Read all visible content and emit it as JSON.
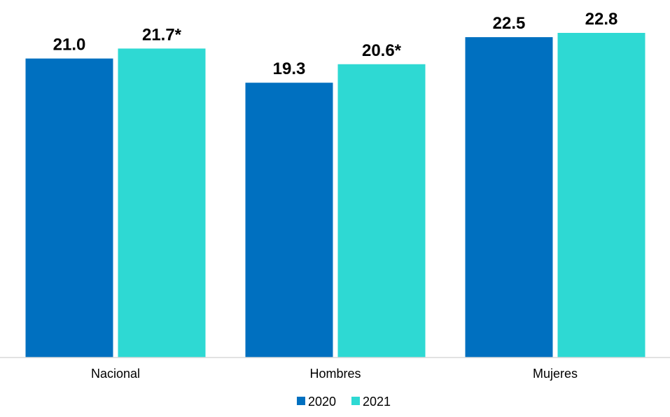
{
  "chart_data": {
    "type": "bar",
    "categories": [
      "Nacional",
      "Hombres",
      "Mujeres"
    ],
    "series": [
      {
        "name": "2020",
        "color": "#0070C0",
        "values": [
          21.0,
          19.3,
          22.5
        ],
        "labels": [
          "21.0",
          "19.3",
          "22.5"
        ]
      },
      {
        "name": "2021",
        "color": "#2ED9D3",
        "values": [
          21.7,
          20.6,
          22.8
        ],
        "labels": [
          "21.7*",
          "20.6*",
          "22.8"
        ]
      }
    ],
    "title": "",
    "xlabel": "",
    "ylabel": "",
    "y_axis_visible": false,
    "grid": false,
    "legend_position": "bottom"
  }
}
